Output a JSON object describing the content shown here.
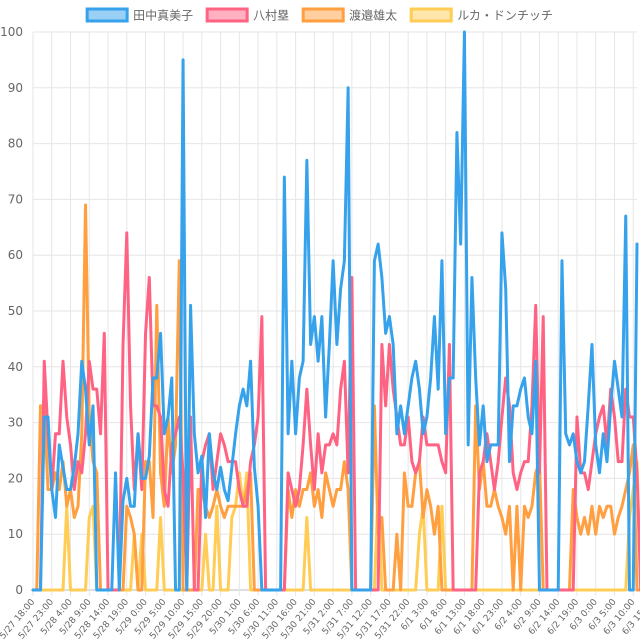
{
  "chart_data": {
    "type": "line",
    "ylim": [
      0,
      100
    ],
    "yticks": [
      0,
      10,
      20,
      30,
      40,
      50,
      60,
      70,
      80,
      90,
      100
    ],
    "grid": true,
    "legend_position": "top",
    "x_tick_labels": [
      "5/27 18:00",
      "5/27 23:00",
      "5/28 4:00",
      "5/28 9:00",
      "5/28 14:00",
      "5/28 19:00",
      "5/29 0:00",
      "5/29 5:00",
      "5/29 10:00",
      "5/29 15:00",
      "5/29 20:00",
      "5/30 1:00",
      "5/30 6:00",
      "5/30 11:00",
      "5/30 16:00",
      "5/30 21:00",
      "5/31 2:00",
      "5/31 7:00",
      "5/31 12:00",
      "5/31 17:00",
      "5/31 22:00",
      "6/1 3:00",
      "6/1 8:00",
      "6/1 13:00",
      "6/1 18:00",
      "6/1 23:00",
      "6/2 4:00",
      "6/2 9:00",
      "6/2 14:00",
      "6/2 19:00",
      "6/3 0:00",
      "6/3 5:00",
      "6/3 10:00",
      "6/3 15:00"
    ],
    "series": [
      {
        "name": "田中真美子",
        "color": "#36a2eb",
        "fill": "rgba(54,162,235,0.5)",
        "values": [
          0,
          0,
          0,
          31,
          31,
          18,
          13,
          26,
          22,
          18,
          18,
          22,
          28,
          41,
          36,
          26,
          33,
          0,
          0,
          0,
          0,
          0,
          21,
          0,
          16,
          20,
          15,
          15,
          28,
          20,
          20,
          24,
          38,
          38,
          46,
          28,
          31,
          38,
          0,
          0,
          95,
          0,
          51,
          28,
          21,
          24,
          13,
          28,
          21,
          18,
          22,
          18,
          16,
          22,
          28,
          33,
          36,
          33,
          41,
          22,
          15,
          0,
          0,
          0,
          0,
          0,
          0,
          74,
          28,
          41,
          28,
          38,
          41,
          77,
          44,
          49,
          41,
          49,
          31,
          44,
          59,
          44,
          54,
          59,
          90,
          0,
          0,
          0,
          0,
          0,
          0,
          59,
          62,
          56,
          46,
          49,
          44,
          28,
          33,
          28,
          33,
          38,
          41,
          36,
          28,
          31,
          38,
          49,
          36,
          59,
          28,
          38,
          38,
          82,
          62,
          100,
          26,
          56,
          38,
          26,
          33,
          23,
          26,
          26,
          26,
          64,
          54,
          23,
          33,
          33,
          36,
          38,
          31,
          28,
          41,
          0,
          0,
          0,
          0,
          0,
          0,
          59,
          28,
          26,
          28,
          23,
          21,
          23,
          33,
          44,
          26,
          21,
          28,
          23,
          33,
          41,
          36,
          31,
          67,
          0,
          0,
          62
        ]
      },
      {
        "name": "八村塁",
        "color": "#ff6384",
        "fill": "rgba(255,99,132,0.5)",
        "values": [
          0,
          0,
          0,
          41,
          28,
          18,
          28,
          28,
          41,
          31,
          26,
          18,
          23,
          21,
          28,
          41,
          36,
          36,
          28,
          46,
          0,
          0,
          0,
          0,
          44,
          64,
          33,
          18,
          28,
          18,
          46,
          56,
          33,
          33,
          31,
          18,
          15,
          26,
          28,
          31,
          21,
          0,
          31,
          0,
          0,
          23,
          26,
          28,
          18,
          23,
          28,
          26,
          23,
          23,
          23,
          18,
          15,
          15,
          23,
          26,
          31,
          49,
          0,
          0,
          0,
          0,
          0,
          0,
          21,
          18,
          15,
          18,
          26,
          36,
          26,
          18,
          28,
          21,
          26,
          26,
          28,
          26,
          36,
          41,
          21,
          56,
          0,
          0,
          0,
          0,
          0,
          0,
          0,
          44,
          33,
          44,
          36,
          31,
          26,
          26,
          31,
          23,
          21,
          23,
          31,
          26,
          26,
          26,
          26,
          23,
          21,
          44,
          0,
          0,
          0,
          0,
          0,
          0,
          0,
          21,
          23,
          28,
          23,
          18,
          23,
          31,
          38,
          33,
          21,
          18,
          21,
          23,
          23,
          33,
          51,
          21,
          49,
          0,
          0,
          0,
          0,
          0,
          0,
          0,
          0,
          31,
          21,
          21,
          18,
          23,
          28,
          31,
          33,
          26,
          36,
          31,
          23,
          23,
          36,
          31,
          31,
          21,
          0,
          0
        ]
      },
      {
        "name": "渡邉雄太",
        "color": "#ff9f40",
        "fill": "rgba(255,159,64,0.5)",
        "values": [
          0,
          0,
          33,
          33,
          18,
          18,
          21,
          18,
          23,
          15,
          18,
          13,
          15,
          28,
          69,
          31,
          23,
          21,
          0,
          0,
          0,
          0,
          0,
          0,
          0,
          15,
          13,
          10,
          0,
          0,
          23,
          23,
          13,
          51,
          21,
          15,
          31,
          21,
          26,
          59,
          0,
          0,
          0,
          0,
          18,
          18,
          15,
          13,
          15,
          18,
          15,
          13,
          15,
          15,
          15,
          15,
          15,
          18,
          21,
          0,
          0,
          0,
          0,
          0,
          0,
          0,
          0,
          0,
          18,
          13,
          18,
          15,
          18,
          18,
          21,
          15,
          18,
          13,
          21,
          18,
          15,
          18,
          18,
          23,
          18,
          0,
          0,
          0,
          0,
          0,
          0,
          33,
          10,
          13,
          0,
          0,
          0,
          10,
          0,
          21,
          15,
          15,
          21,
          23,
          13,
          18,
          15,
          10,
          15,
          0,
          0,
          0,
          0,
          0,
          0,
          0,
          0,
          0,
          33,
          18,
          23,
          15,
          15,
          18,
          15,
          13,
          10,
          15,
          0,
          15,
          0,
          15,
          13,
          15,
          21,
          23,
          0,
          0,
          0,
          0,
          0,
          0,
          0,
          0,
          18,
          13,
          10,
          13,
          10,
          15,
          10,
          15,
          13,
          15,
          15,
          10,
          13,
          15,
          18,
          21,
          26,
          0,
          0,
          0
        ]
      },
      {
        "name": "ルカ・ドンチッチ",
        "color": "#ffcd56",
        "fill": "rgba(255,205,86,0.5)",
        "values": [
          0,
          0,
          0,
          0,
          0,
          0,
          0,
          0,
          0,
          15,
          0,
          0,
          0,
          0,
          0,
          13,
          15,
          0,
          0,
          0,
          0,
          0,
          0,
          0,
          0,
          0,
          0,
          10,
          0,
          10,
          0,
          0,
          0,
          0,
          13,
          0,
          0,
          0,
          0,
          0,
          0,
          0,
          0,
          0,
          0,
          0,
          10,
          0,
          0,
          15,
          0,
          0,
          0,
          13,
          15,
          21,
          15,
          21,
          0,
          0,
          0,
          0,
          0,
          0,
          0,
          0,
          0,
          0,
          0,
          0,
          0,
          0,
          0,
          13,
          0,
          0,
          0,
          0,
          0,
          0,
          0,
          0,
          0,
          0,
          0,
          0,
          0,
          0,
          0,
          0,
          0,
          0,
          18,
          0,
          0,
          0,
          0,
          0,
          0,
          0,
          0,
          0,
          0,
          10,
          15,
          0,
          0,
          0,
          0,
          15,
          0,
          0,
          0,
          0,
          0,
          0,
          0,
          0,
          0,
          0,
          0,
          0,
          0,
          0,
          0,
          0,
          0,
          0,
          0,
          0,
          0,
          0,
          0,
          0,
          0,
          0,
          0,
          0,
          0,
          0,
          0,
          0,
          0,
          0,
          0,
          0,
          0,
          0,
          0,
          0,
          0,
          0,
          0,
          0,
          0,
          0,
          0,
          0,
          0,
          13,
          18,
          23,
          0,
          0,
          0
        ]
      }
    ]
  }
}
